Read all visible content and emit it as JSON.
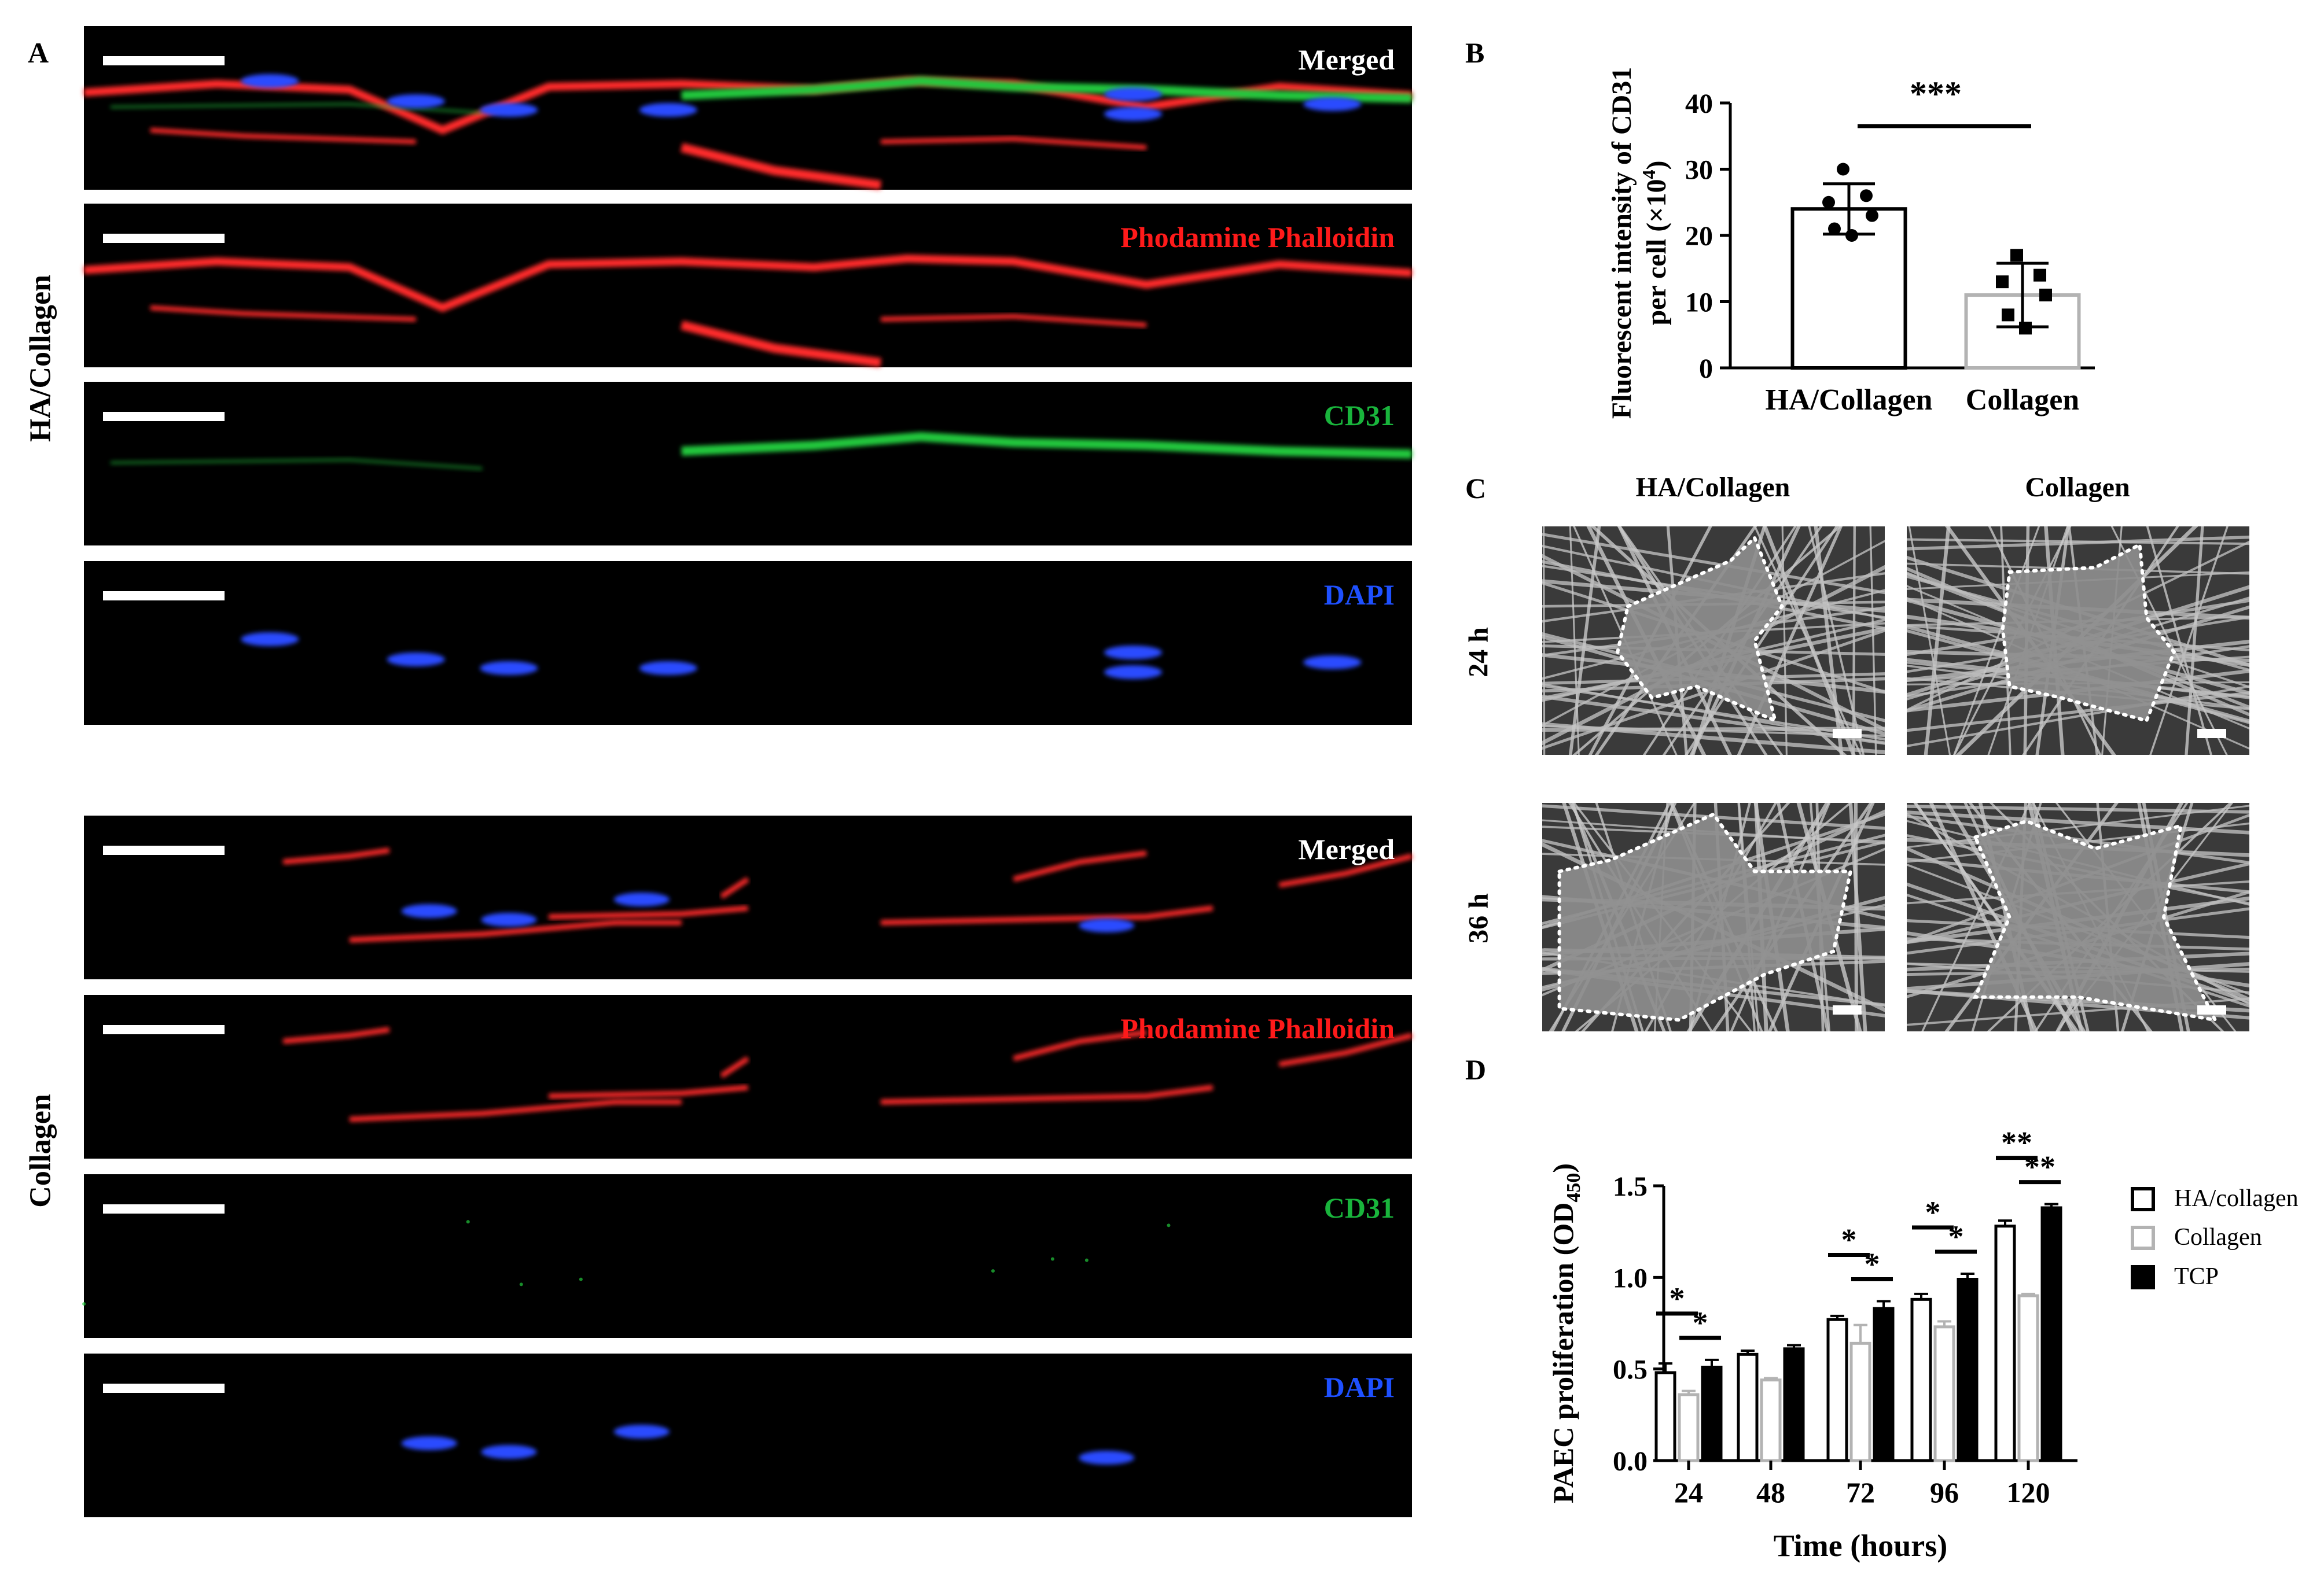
{
  "panel_labels": {
    "a": "A",
    "b": "B",
    "c": "C",
    "d": "D"
  },
  "panel_a": {
    "group_labels": [
      "HA/Collagen",
      "Collagen"
    ],
    "channels": [
      {
        "label": "Merged",
        "color": "#ffffff"
      },
      {
        "label": "Phodamine Phalloidin",
        "color": "#ff1a1a"
      },
      {
        "label": "CD31",
        "color": "#19b43c"
      },
      {
        "label": "DAPI",
        "color": "#1e50ff"
      }
    ]
  },
  "panel_c": {
    "columns": [
      "HA/Collagen",
      "Collagen"
    ],
    "rows": [
      "24 h",
      "36 h"
    ]
  },
  "chart_data": [
    {
      "type": "bar",
      "panel": "B",
      "categories": [
        "HA/Collagen",
        "Collagen"
      ],
      "values": [
        24,
        11
      ],
      "errors": [
        3.8,
        4.8
      ],
      "points": [
        [
          30,
          26,
          25,
          23,
          21,
          20
        ],
        [
          17,
          14,
          13,
          11,
          8,
          6
        ]
      ],
      "ylabel_line1": "Fluorescent intensity of CD31",
      "ylabel_line2": "per cell (×10",
      "ylabel_sup": "4",
      "ylabel_end": ")",
      "ylim": [
        0,
        40
      ],
      "yticks": [
        "0",
        "10",
        "20",
        "30",
        "40"
      ],
      "significance": "***",
      "bar_colors": [
        "#000000",
        "#b3b3b3"
      ]
    },
    {
      "type": "bar",
      "panel": "D",
      "categories": [
        "24",
        "48",
        "72",
        "96",
        "120"
      ],
      "series": [
        {
          "name": "HA/collagen",
          "values": [
            0.48,
            0.58,
            0.77,
            0.88,
            1.28
          ],
          "errors": [
            0.05,
            0.02,
            0.02,
            0.03,
            0.03
          ],
          "fill": "#ffffff",
          "stroke": "#000000"
        },
        {
          "name": "Collagen",
          "values": [
            0.36,
            0.44,
            0.64,
            0.73,
            0.9
          ],
          "errors": [
            0.02,
            0.01,
            0.1,
            0.03,
            0.01
          ],
          "fill": "#ffffff",
          "stroke": "#b3b3b3"
        },
        {
          "name": "TCP",
          "values": [
            0.51,
            0.61,
            0.83,
            0.99,
            1.38
          ],
          "errors": [
            0.04,
            0.02,
            0.04,
            0.03,
            0.02
          ],
          "fill": "#000000",
          "stroke": "#000000"
        }
      ],
      "ylim": [
        0,
        1.5
      ],
      "yticks": [
        "0.0",
        "0.5",
        "1.0",
        "1.5"
      ],
      "ylabel_main": "PAEC proliferation (OD",
      "ylabel_sub": "450",
      "ylabel_end": ")",
      "xlabel": "Time (hours)",
      "significance_marks": [
        {
          "group": 0,
          "from": 0,
          "to": 1,
          "label": "*"
        },
        {
          "group": 0,
          "from": 1,
          "to": 2,
          "label": "*"
        },
        {
          "group": 2,
          "from": 0,
          "to": 1,
          "label": "*"
        },
        {
          "group": 2,
          "from": 1,
          "to": 2,
          "label": "*"
        },
        {
          "group": 3,
          "from": 0,
          "to": 1,
          "label": "*"
        },
        {
          "group": 3,
          "from": 1,
          "to": 2,
          "label": "*"
        },
        {
          "group": 4,
          "from": 0,
          "to": 1,
          "label": "**"
        },
        {
          "group": 4,
          "from": 1,
          "to": 2,
          "label": "**"
        }
      ],
      "legend_position": "right"
    }
  ]
}
